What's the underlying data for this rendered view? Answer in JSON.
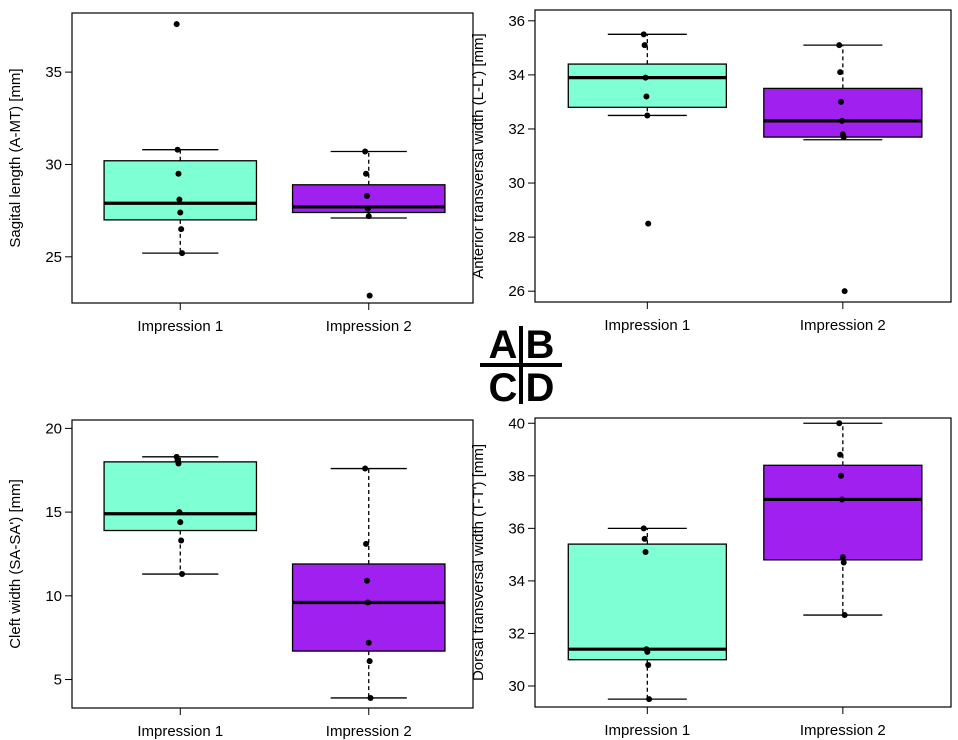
{
  "colors": {
    "impression1": "#7fffd4",
    "impression2": "#a020f0",
    "frame": "#000000"
  },
  "panel_labels": [
    "A",
    "B",
    "C",
    "D"
  ],
  "chart_data": [
    {
      "id": "A",
      "type": "box",
      "ylabel": "Sagital length (A-MT) [mm]",
      "categories": [
        "Impression 1",
        "Impression 2"
      ],
      "ylim": [
        22.5,
        38.2
      ],
      "yticks": [
        25,
        30,
        35
      ],
      "boxes": [
        {
          "name": "Impression 1",
          "whisker_low": 25.2,
          "q1": 27.0,
          "median": 27.9,
          "q3": 30.2,
          "whisker_high": 30.8,
          "points": [
            37.6,
            30.8,
            29.5,
            28.1,
            27.4,
            26.5,
            25.2
          ]
        },
        {
          "name": "Impression 2",
          "whisker_low": 27.1,
          "q1": 27.4,
          "median": 27.7,
          "q3": 28.9,
          "whisker_high": 30.7,
          "points": [
            30.7,
            29.5,
            28.3,
            27.6,
            27.2,
            22.9
          ]
        }
      ]
    },
    {
      "id": "B",
      "type": "box",
      "ylabel": "Anterior transversal width (L-L') [mm]",
      "categories": [
        "Impression 1",
        "Impression 2"
      ],
      "ylim": [
        25.6,
        36.4
      ],
      "yticks": [
        26,
        28,
        30,
        32,
        34,
        36
      ],
      "boxes": [
        {
          "name": "Impression 1",
          "whisker_low": 32.5,
          "q1": 32.8,
          "median": 33.9,
          "q3": 34.4,
          "whisker_high": 35.5,
          "points": [
            35.5,
            35.1,
            33.9,
            33.2,
            32.5,
            28.5
          ]
        },
        {
          "name": "Impression 2",
          "whisker_low": 31.6,
          "q1": 31.7,
          "median": 32.3,
          "q3": 33.5,
          "whisker_high": 35.1,
          "points": [
            35.1,
            34.1,
            33.0,
            32.3,
            31.8,
            31.7,
            26.0
          ]
        }
      ]
    },
    {
      "id": "C",
      "type": "box",
      "ylabel": "Cleft width (SA-SA') [mm]",
      "categories": [
        "Impression 1",
        "Impression 2"
      ],
      "ylim": [
        3.3,
        20.5
      ],
      "yticks": [
        5,
        10,
        15,
        20
      ],
      "boxes": [
        {
          "name": "Impression 1",
          "whisker_low": 11.3,
          "q1": 13.9,
          "median": 14.9,
          "q3": 18.0,
          "whisker_high": 18.3,
          "points": [
            18.3,
            18.1,
            17.9,
            15.0,
            14.4,
            13.3,
            11.3
          ]
        },
        {
          "name": "Impression 2",
          "whisker_low": 3.9,
          "q1": 6.7,
          "median": 9.6,
          "q3": 11.9,
          "whisker_high": 17.6,
          "points": [
            17.6,
            13.1,
            10.9,
            9.6,
            7.2,
            6.1,
            3.9
          ]
        }
      ]
    },
    {
      "id": "D",
      "type": "box",
      "ylabel": "Dorsal transversal width (T-T') [mm]",
      "categories": [
        "Impression 1",
        "Impression 2"
      ],
      "ylim": [
        29.2,
        40.2
      ],
      "yticks": [
        30,
        32,
        34,
        36,
        38,
        40
      ],
      "boxes": [
        {
          "name": "Impression 1",
          "whisker_low": 29.5,
          "q1": 31.0,
          "median": 31.4,
          "q3": 35.4,
          "whisker_high": 36.0,
          "points": [
            36.0,
            35.6,
            35.1,
            31.4,
            31.3,
            30.8,
            29.5
          ]
        },
        {
          "name": "Impression 2",
          "whisker_low": 32.7,
          "q1": 34.8,
          "median": 37.1,
          "q3": 38.4,
          "whisker_high": 40.0,
          "points": [
            40.0,
            38.8,
            38.0,
            37.1,
            34.9,
            34.7,
            32.7
          ]
        }
      ]
    }
  ]
}
